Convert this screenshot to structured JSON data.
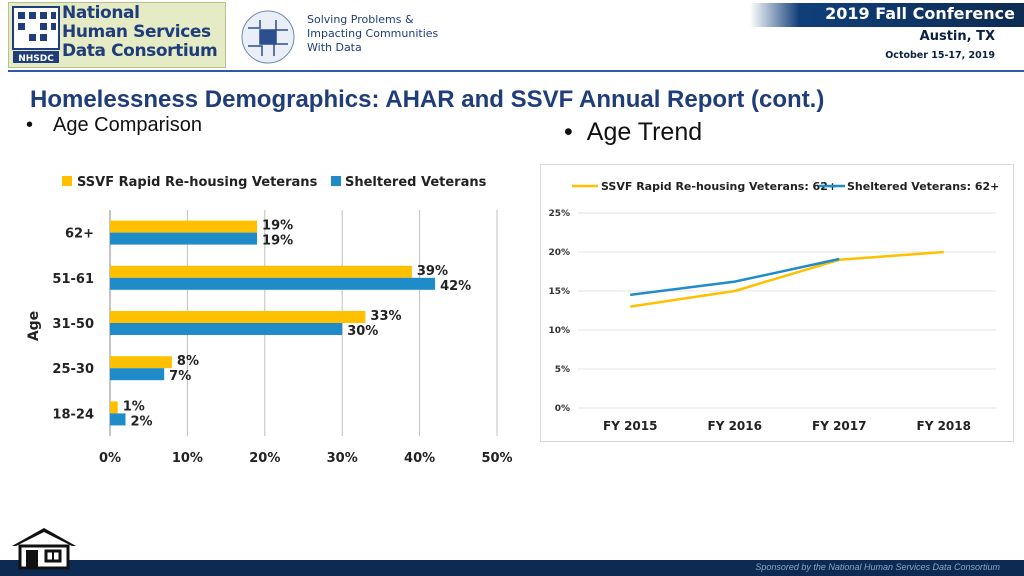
{
  "header": {
    "org_name": "National\nHuman Services\nData Consortium",
    "logo_mark": "NHSDC",
    "tagline": "Solving Problems &\nImpacting Communities\nWith Data",
    "conference_title": "2019 Fall Conference",
    "conference_city": "Austin, TX",
    "conference_dates": "October 15-17, 2019"
  },
  "slide": {
    "title": "Homelessness Demographics:  AHAR and SSVF Annual Report (cont.)",
    "bullet_left": "Age Comparison",
    "bullet_right": "Age Trend",
    "bullet_symbol": "•"
  },
  "footer": {
    "sponsor": "Sponsored by the National Human Services Data Consortium"
  },
  "colors": {
    "ssvf": "#ffc000",
    "sheltered": "#1f8bc9",
    "title": "#1f3d7a",
    "footer": "#0d2b52"
  },
  "icons": {
    "home": "home-icon"
  },
  "chart_data": [
    {
      "type": "bar",
      "orientation": "horizontal",
      "ylabel": "Age",
      "categories": [
        "62+",
        "51-61",
        "31-50",
        "25-30",
        "18-24"
      ],
      "series": [
        {
          "name": "SSVF Rapid Re-housing Veterans",
          "values": [
            19,
            39,
            33,
            8,
            1
          ],
          "labels": [
            "19%",
            "39%",
            "33%",
            "8%",
            "1%"
          ]
        },
        {
          "name": "Sheltered Veterans",
          "values": [
            19,
            42,
            30,
            7,
            2
          ],
          "labels": [
            "19%",
            "42%",
            "30%",
            "7%",
            "2%"
          ]
        }
      ],
      "xlim": [
        0,
        50
      ],
      "xticks": [
        0,
        10,
        20,
        30,
        40,
        50
      ],
      "xtick_labels": [
        "0%",
        "10%",
        "20%",
        "30%",
        "40%",
        "50%"
      ],
      "grid": true,
      "legend": "top"
    },
    {
      "type": "line",
      "x": [
        "FY 2015",
        "FY 2016",
        "FY 2017",
        "FY 2018"
      ],
      "series": [
        {
          "name": "SSVF Rapid Re-housing Veterans: 62+",
          "values": [
            13,
            15,
            19,
            20
          ]
        },
        {
          "name": "Sheltered Veterans: 62+",
          "values": [
            14.5,
            16.2,
            19.1,
            null
          ]
        }
      ],
      "ylim": [
        0,
        25
      ],
      "yticks": [
        0,
        5,
        10,
        15,
        20,
        25
      ],
      "ytick_labels": [
        "0%",
        "5%",
        "10%",
        "15%",
        "20%",
        "25%"
      ],
      "grid": true,
      "legend": "top"
    }
  ]
}
